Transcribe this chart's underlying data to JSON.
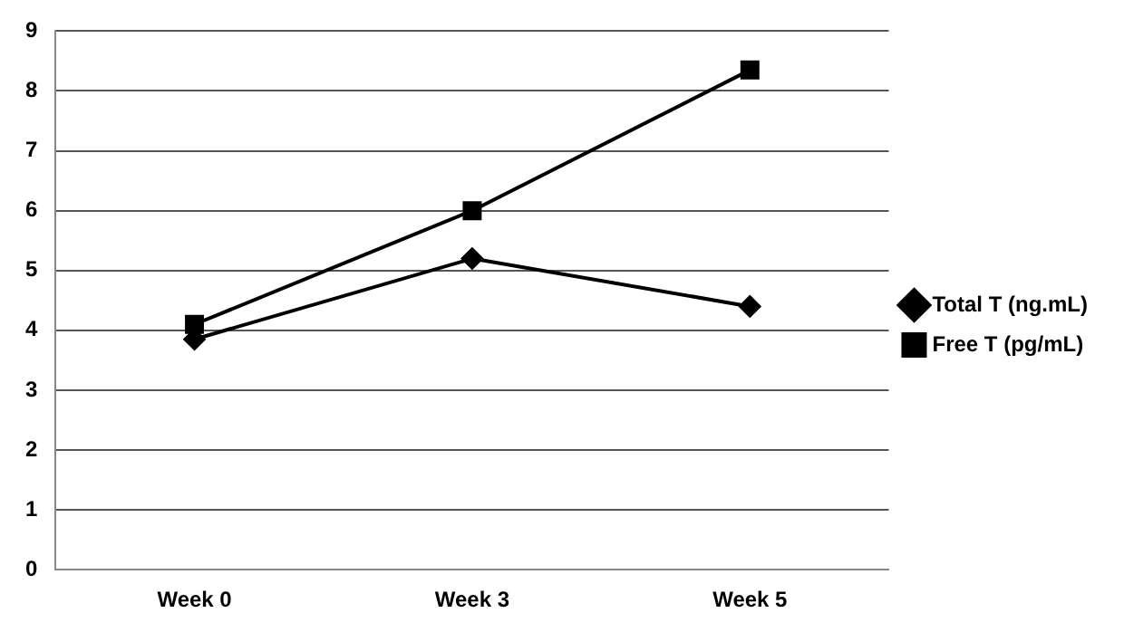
{
  "chart_data": {
    "type": "line",
    "categories": [
      "Week 0",
      "Week 3",
      "Week 5"
    ],
    "series": [
      {
        "name": "Total T (ng.mL)",
        "color": "#000000",
        "marker": "diamond",
        "values": [
          3.85,
          5.2,
          4.4
        ]
      },
      {
        "name": "Free T (pg/mL)",
        "color": "#000000",
        "marker": "square",
        "values": [
          4.1,
          6.0,
          8.35
        ]
      }
    ],
    "ylim": [
      0,
      9
    ],
    "yticks": [
      0,
      1,
      2,
      3,
      4,
      5,
      6,
      7,
      8,
      9
    ],
    "grid": "y",
    "legend": "right",
    "line_style": "solid"
  }
}
